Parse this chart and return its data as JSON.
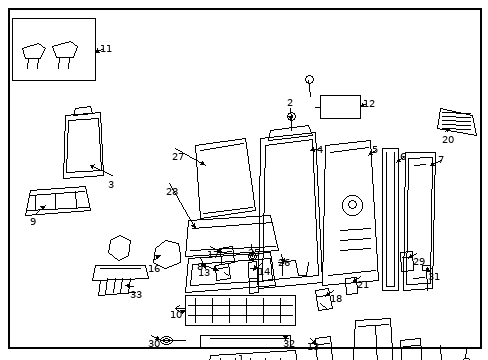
{
  "bg_color": "#ffffff",
  "border_color": "#000000",
  "fig_width": 4.89,
  "fig_height": 3.6,
  "dpi": 100
}
